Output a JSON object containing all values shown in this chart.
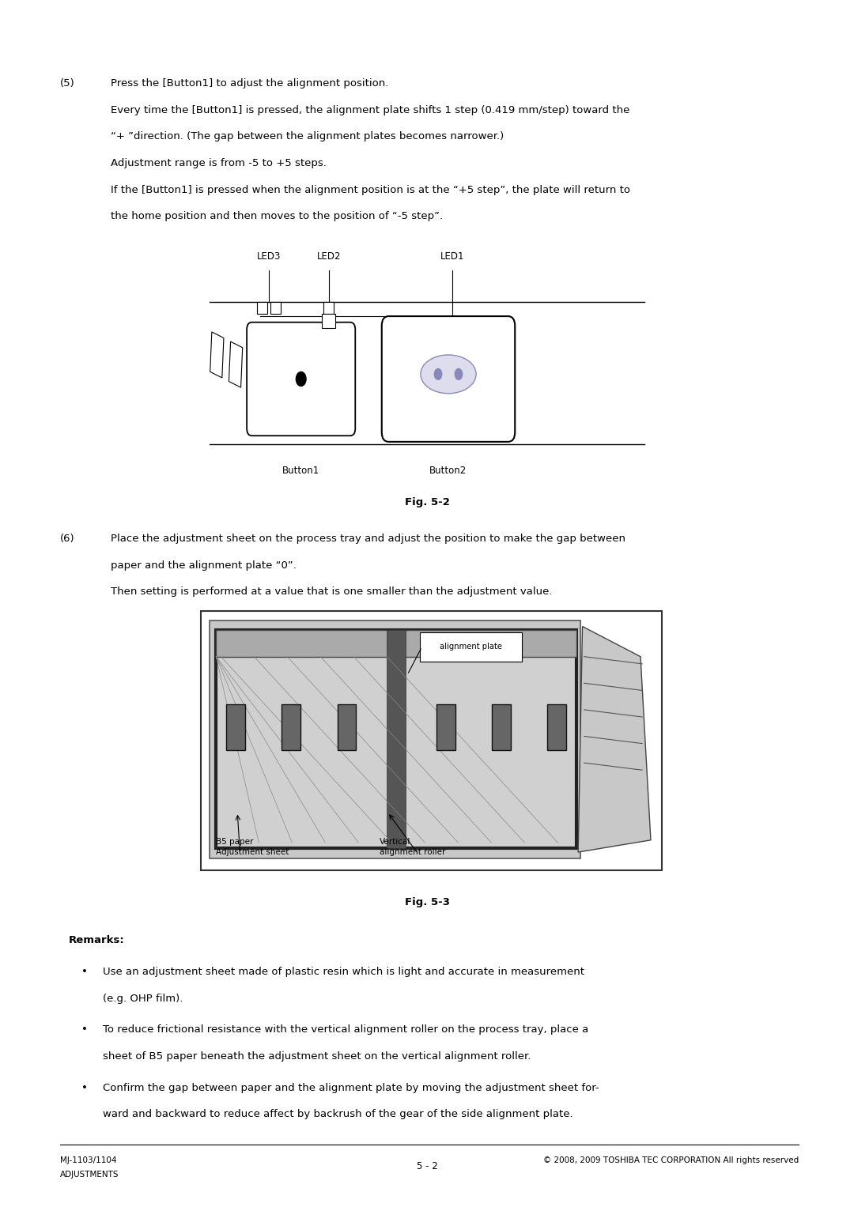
{
  "page_bg": "#ffffff",
  "text_color": "#000000",
  "fig_width": 10.8,
  "fig_height": 15.27,
  "section5_number": "(5)",
  "section5_line1": "Press the [Button1] to adjust the alignment position.",
  "section5_line2": "Every time the [Button1] is pressed, the alignment plate shifts 1 step (0.419 mm/step) toward the",
  "section5_line3": "“+ ”direction. (The gap between the alignment plates becomes narrower.)",
  "section5_line4": "Adjustment range is from -5 to +5 steps.",
  "section5_line5": "If the [Button1] is pressed when the alignment position is at the “+5 step”, the plate will return to",
  "section5_line6": "the home position and then moves to the position of “-5 step”.",
  "fig2_caption": "Fig. 5-2",
  "section6_number": "(6)",
  "section6_line1": "Place the adjustment sheet on the process tray and adjust the position to make the gap between",
  "section6_line2": "paper and the alignment plate “0”.",
  "section6_line3": "Then setting is performed at a value that is one smaller than the adjustment value.",
  "fig3_caption": "Fig. 5-3",
  "remarks_title": "Remarks:",
  "remarks_bullet1a": "Use an adjustment sheet made of plastic resin which is light and accurate in measurement",
  "remarks_bullet1b": "(e.g. OHP film).",
  "remarks_bullet2a": "To reduce frictional resistance with the vertical alignment roller on the process tray, place a",
  "remarks_bullet2b": "sheet of B5 paper beneath the adjustment sheet on the vertical alignment roller.",
  "remarks_bullet3a": "Confirm the gap between paper and the alignment plate by moving the adjustment sheet for-",
  "remarks_bullet3b": "ward and backward to reduce affect by backrush of the gear of the side alignment plate.",
  "footer_left1": "MJ-1103/1104",
  "footer_left2": "ADJUSTMENTS",
  "footer_center": "5 - 2",
  "footer_right": "© 2008, 2009 TOSHIBA TEC CORPORATION All rights reserved",
  "fs_main": 9.5,
  "fs_small": 8.5,
  "fs_remarks": 9.5,
  "fs_footer": 7.5,
  "lm": 0.07,
  "lm2": 0.13
}
